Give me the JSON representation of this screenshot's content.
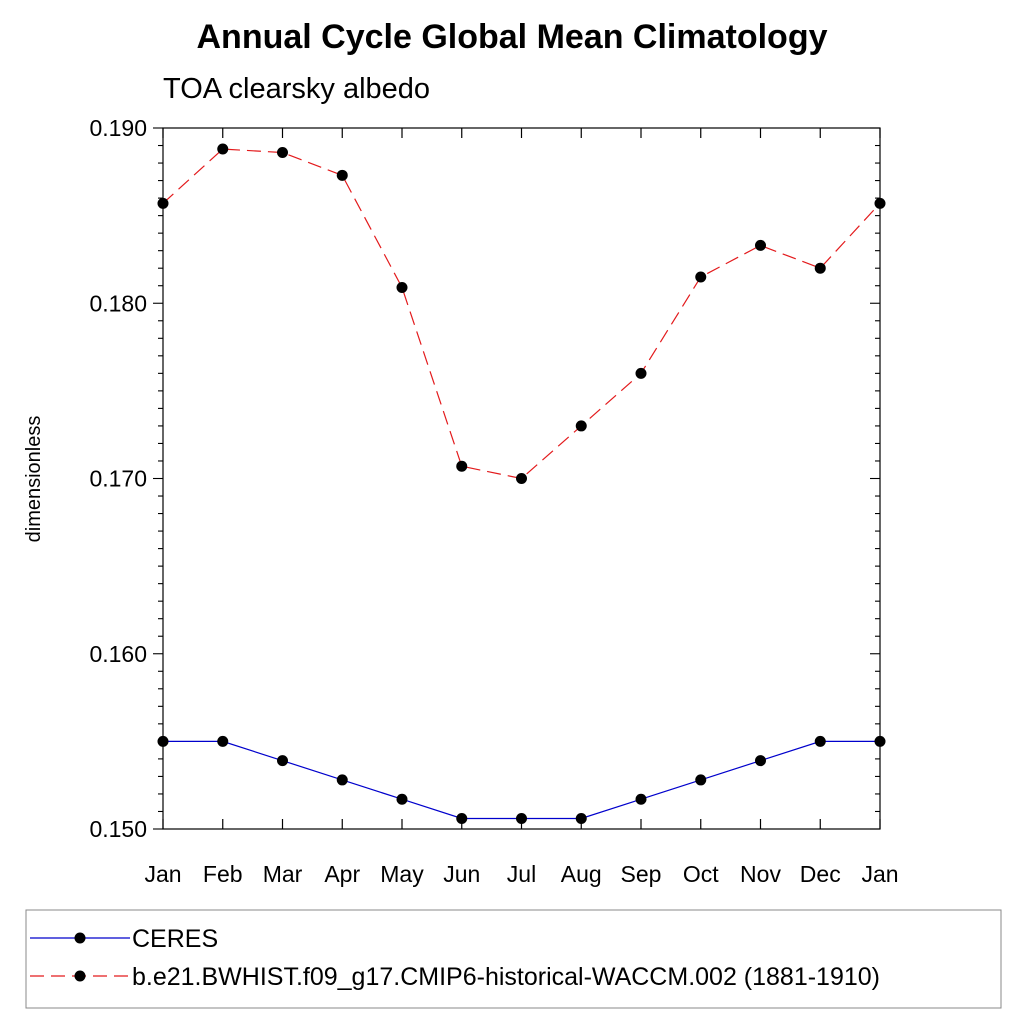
{
  "chart_data": {
    "type": "line",
    "title": "Annual Cycle Global Mean Climatology",
    "subtitle": "TOA clearsky albedo",
    "ylabel": "dimensionless",
    "xlabel": "",
    "categories": [
      "Jan",
      "Feb",
      "Mar",
      "Apr",
      "May",
      "Jun",
      "Jul",
      "Aug",
      "Sep",
      "Oct",
      "Nov",
      "Dec",
      "Jan"
    ],
    "ylim": [
      0.15,
      0.19
    ],
    "yticks": [
      "0.150",
      "0.160",
      "0.170",
      "0.180",
      "0.190"
    ],
    "grid": false,
    "legend_position": "bottom",
    "series": [
      {
        "name": "CERES",
        "color": "#0000cc",
        "line_style": "solid",
        "marker": "filled-circle",
        "values": [
          0.155,
          0.155,
          0.1539,
          0.1528,
          0.1517,
          0.1506,
          0.1506,
          0.1506,
          0.1517,
          0.1528,
          0.1539,
          0.155,
          0.155
        ]
      },
      {
        "name": "b.e21.BWHIST.f09_g17.CMIP6-historical-WACCM.002 (1881-1910)",
        "color": "#e31a1c",
        "line_style": "dashed",
        "marker": "filled-circle",
        "values": [
          0.1857,
          0.1888,
          0.1886,
          0.1873,
          0.1809,
          0.1707,
          0.17,
          0.173,
          0.176,
          0.1815,
          0.1833,
          0.182,
          0.1857
        ]
      }
    ]
  }
}
